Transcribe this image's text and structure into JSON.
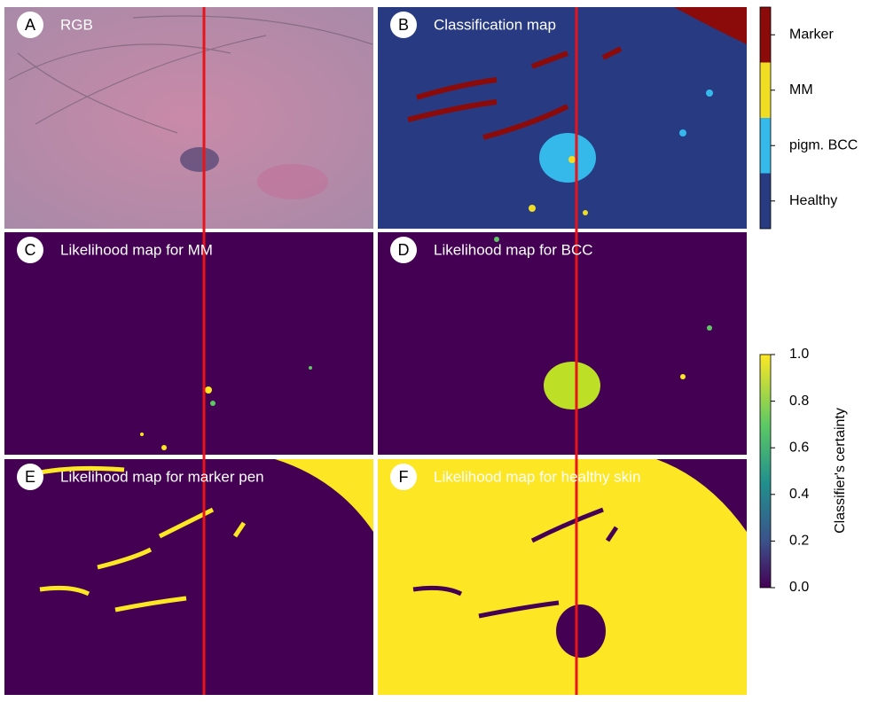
{
  "panels": [
    {
      "letter": "A",
      "title": "RGB"
    },
    {
      "letter": "B",
      "title": "Classification map"
    },
    {
      "letter": "C",
      "title": "Likelihood map for MM"
    },
    {
      "letter": "D",
      "title": "Likelihood map for BCC"
    },
    {
      "letter": "E",
      "title": "Likelihood map for marker pen"
    },
    {
      "letter": "F",
      "title": "Likelihood map for healthy skin"
    }
  ],
  "class_legend": [
    {
      "label": "Marker",
      "color": "#8b0a0a"
    },
    {
      "label": "MM",
      "color": "#f2dd25"
    },
    {
      "label": "pigm. BCC",
      "color": "#35b8ea"
    },
    {
      "label": "Healthy",
      "color": "#283b82"
    }
  ],
  "colorbar": {
    "label": "Classifier's certainty",
    "lim": [
      0,
      1
    ],
    "ticks": [
      {
        "value": 0,
        "label": "0.0"
      },
      {
        "value": 0.2,
        "label": "0.2"
      },
      {
        "value": 0.4,
        "label": "0.4"
      },
      {
        "value": 0.6,
        "label": "0.6"
      },
      {
        "value": 0.8,
        "label": "0.8"
      },
      {
        "value": 1,
        "label": "1.0"
      }
    ]
  }
}
